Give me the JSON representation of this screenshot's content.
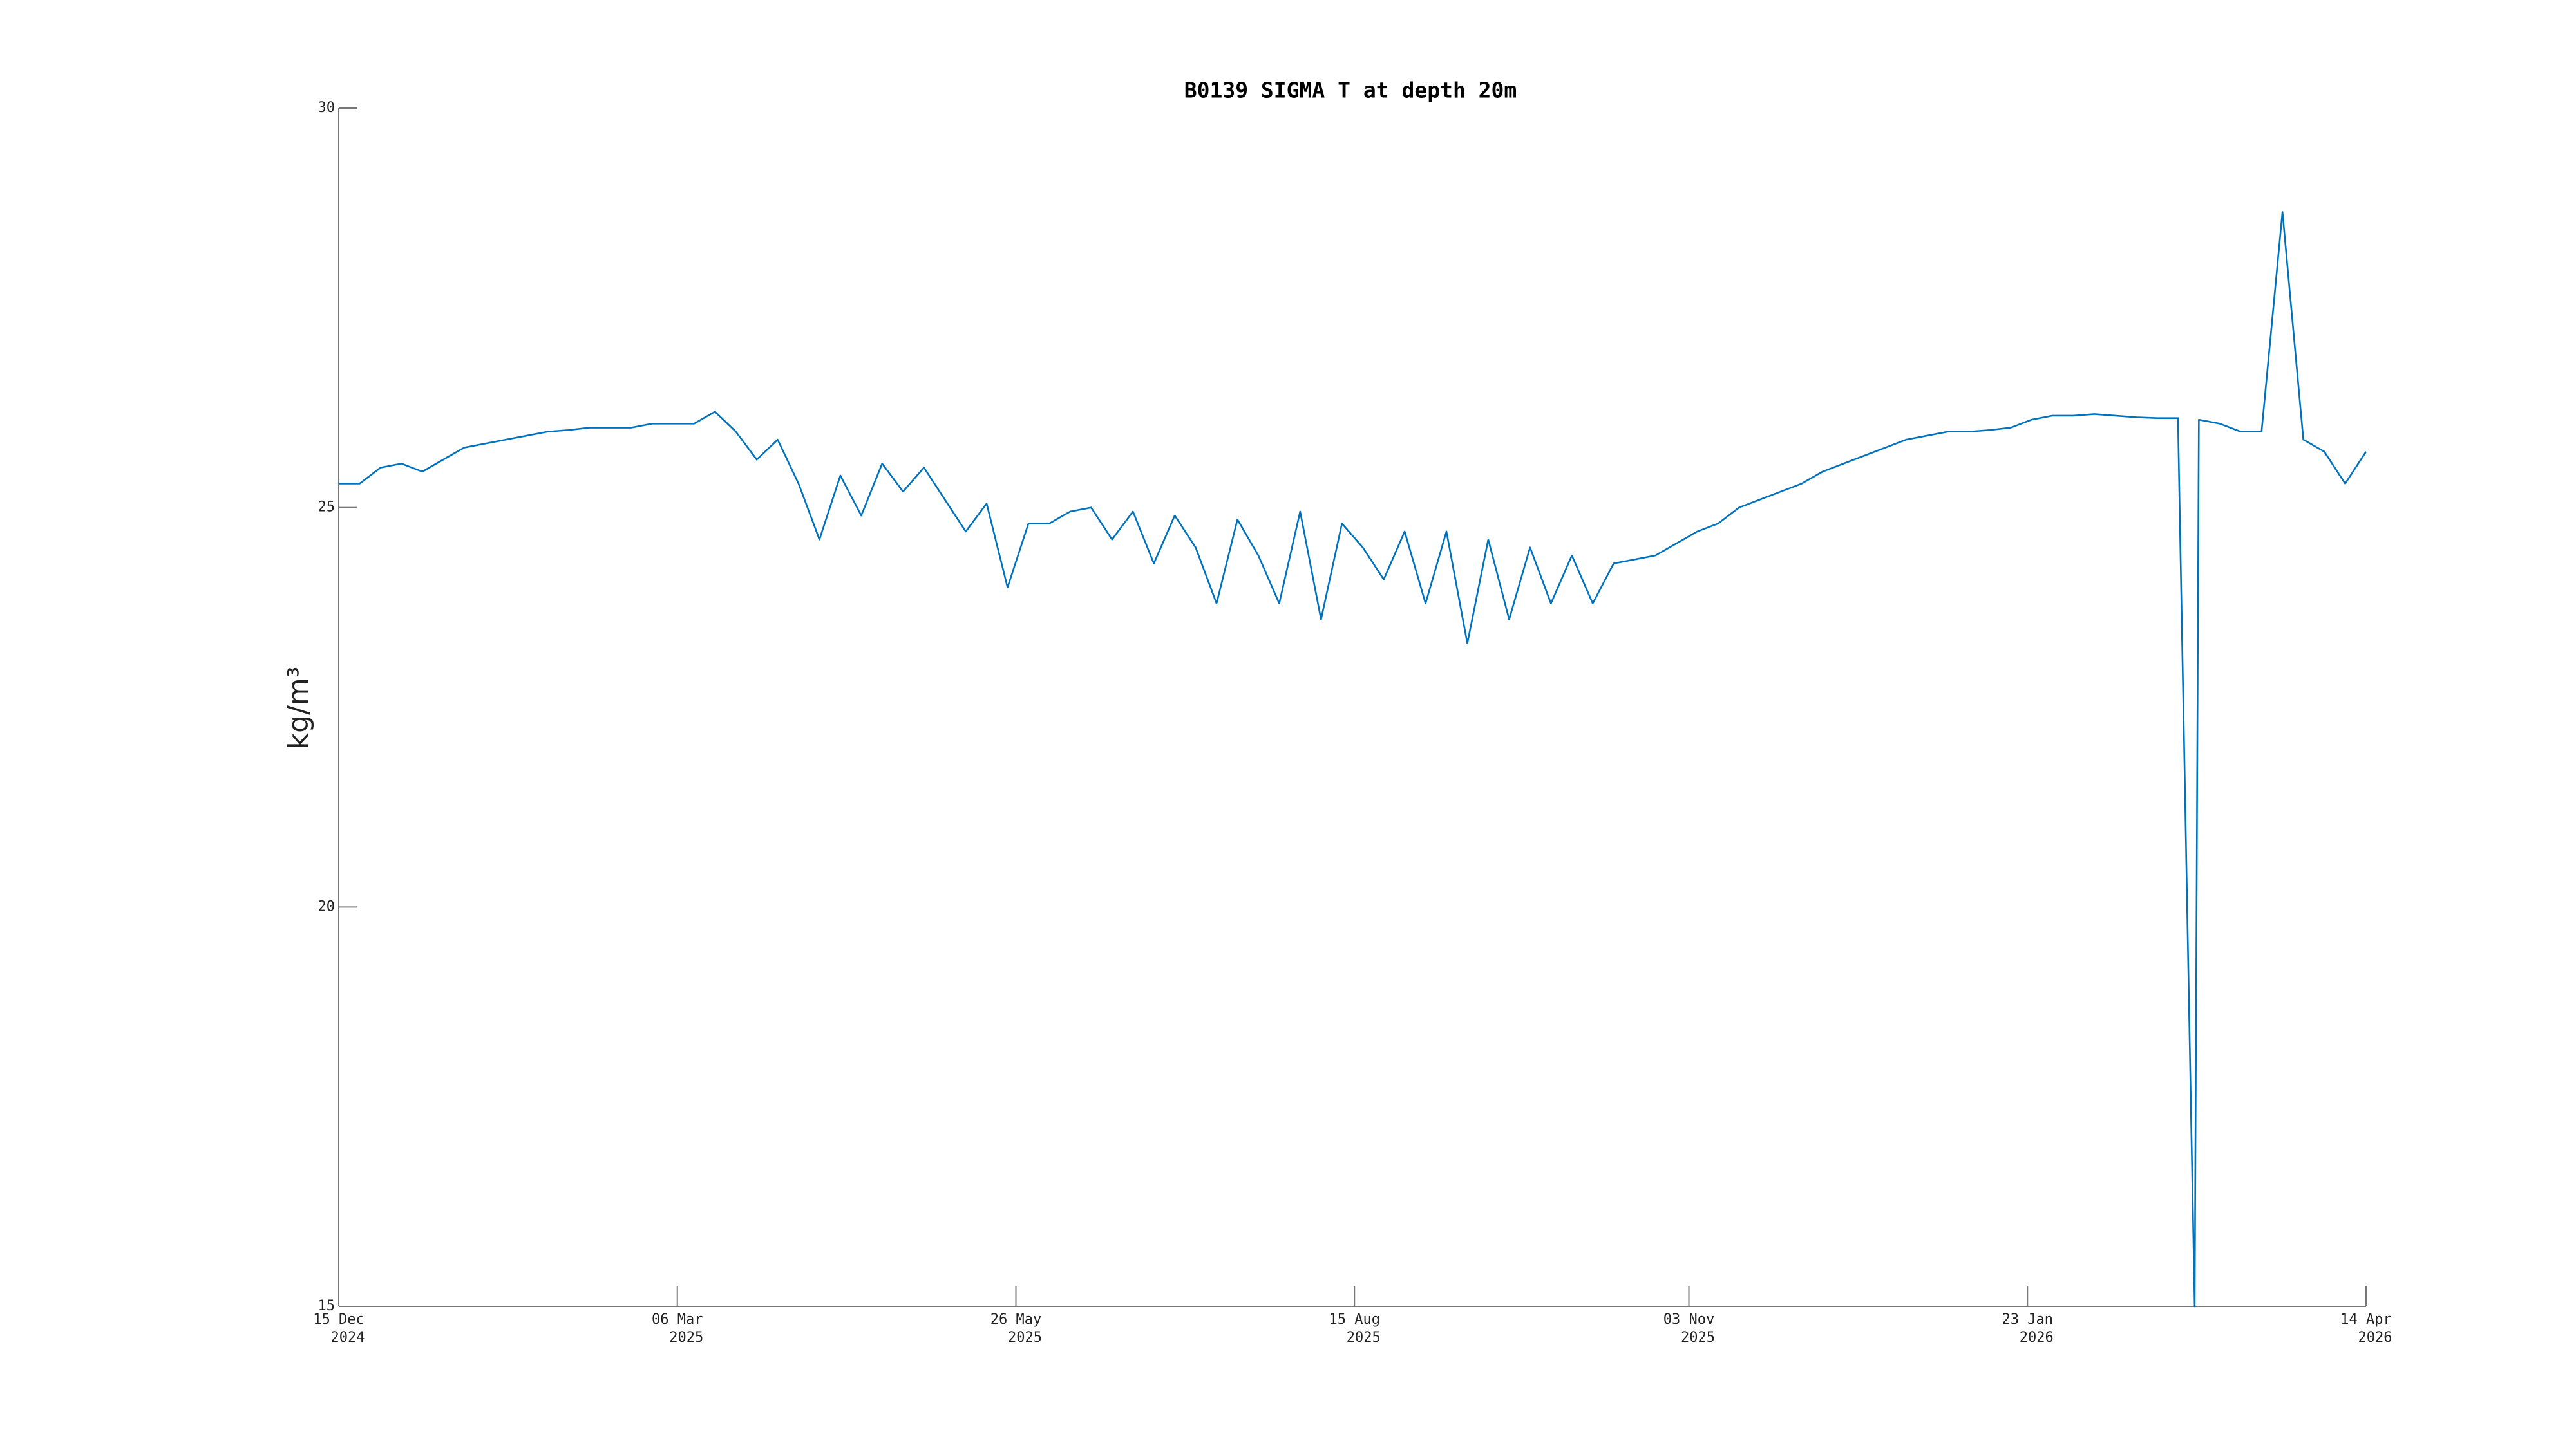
{
  "chart_data": {
    "type": "line",
    "title": "B0139 SIGMA T at depth 20m",
    "ylabel": "kg/m³",
    "color": "#0072bd",
    "x": [
      "2024-12-15",
      "2024-12-20",
      "2024-12-25",
      "2024-12-30",
      "2025-01-04",
      "2025-01-09",
      "2025-01-14",
      "2025-01-19",
      "2025-01-24",
      "2025-01-29",
      "2025-02-03",
      "2025-02-08",
      "2025-02-13",
      "2025-02-18",
      "2025-02-23",
      "2025-02-28",
      "2025-03-05",
      "2025-03-10",
      "2025-03-15",
      "2025-03-20",
      "2025-03-25",
      "2025-03-30",
      "2025-04-04",
      "2025-04-09",
      "2025-04-14",
      "2025-04-19",
      "2025-04-24",
      "2025-04-29",
      "2025-05-04",
      "2025-05-09",
      "2025-05-14",
      "2025-05-19",
      "2025-05-24",
      "2025-05-29",
      "2025-06-03",
      "2025-06-08",
      "2025-06-13",
      "2025-06-18",
      "2025-06-23",
      "2025-06-28",
      "2025-07-03",
      "2025-07-08",
      "2025-07-13",
      "2025-07-18",
      "2025-07-23",
      "2025-07-28",
      "2025-08-02",
      "2025-08-07",
      "2025-08-12",
      "2025-08-17",
      "2025-08-22",
      "2025-08-27",
      "2025-09-01",
      "2025-09-06",
      "2025-09-11",
      "2025-09-16",
      "2025-09-21",
      "2025-09-26",
      "2025-10-01",
      "2025-10-06",
      "2025-10-11",
      "2025-10-16",
      "2025-10-21",
      "2025-10-26",
      "2025-10-31",
      "2025-11-05",
      "2025-11-10",
      "2025-11-15",
      "2025-11-20",
      "2025-11-25",
      "2025-11-30",
      "2025-12-05",
      "2025-12-10",
      "2025-12-15",
      "2025-12-20",
      "2025-12-25",
      "2025-12-30",
      "2026-01-04",
      "2026-01-09",
      "2026-01-14",
      "2026-01-19",
      "2026-01-24",
      "2026-01-29",
      "2026-02-03",
      "2026-02-08",
      "2026-02-13",
      "2026-02-18",
      "2026-02-23",
      "2026-02-28",
      "2026-03-04",
      "2026-03-05",
      "2026-03-10",
      "2026-03-15",
      "2026-03-20",
      "2026-03-25",
      "2026-03-30",
      "2026-04-04",
      "2026-04-09",
      "2026-04-14"
    ],
    "values": [
      25.3,
      25.3,
      25.5,
      25.55,
      25.45,
      25.6,
      25.75,
      25.8,
      25.85,
      25.9,
      25.95,
      25.97,
      26.0,
      26.0,
      26.0,
      26.05,
      26.05,
      26.05,
      26.2,
      25.95,
      25.6,
      25.85,
      25.3,
      24.6,
      25.4,
      24.9,
      25.55,
      25.2,
      25.5,
      25.1,
      24.7,
      25.05,
      24.0,
      24.8,
      24.8,
      24.95,
      25.0,
      24.6,
      24.95,
      24.3,
      24.9,
      24.5,
      23.8,
      24.85,
      24.4,
      23.8,
      24.95,
      23.6,
      24.8,
      24.5,
      24.1,
      24.7,
      23.8,
      24.7,
      23.3,
      24.6,
      23.6,
      24.5,
      23.8,
      24.4,
      23.8,
      24.3,
      24.35,
      24.4,
      24.55,
      24.7,
      24.8,
      25.0,
      25.1,
      25.2,
      25.3,
      25.45,
      25.55,
      25.65,
      25.75,
      25.85,
      25.9,
      25.95,
      25.95,
      25.97,
      26.0,
      26.1,
      26.15,
      26.15,
      26.17,
      26.15,
      26.13,
      26.12,
      26.12,
      15,
      26.1,
      26.05,
      25.95,
      25.95,
      28.7,
      25.85,
      25.7,
      25.3,
      25.7
    ],
    "xlim": [
      "2024-12-15",
      "2026-04-14"
    ],
    "xticks": [
      {
        "value": "2024-12-15",
        "label": [
          "15 Dec",
          "2024"
        ]
      },
      {
        "value": "2025-03-06",
        "label": [
          "06 Mar",
          "2025"
        ]
      },
      {
        "value": "2025-05-26",
        "label": [
          "26 May",
          "2025"
        ]
      },
      {
        "value": "2025-08-15",
        "label": [
          "15 Aug",
          "2025"
        ]
      },
      {
        "value": "2025-11-03",
        "label": [
          "03 Nov",
          "2025"
        ]
      },
      {
        "value": "2026-01-23",
        "label": [
          "23 Jan",
          "2026"
        ]
      },
      {
        "value": "2026-04-14",
        "label": [
          "14 Apr",
          "2026"
        ]
      }
    ],
    "ylim": [
      15,
      30
    ],
    "yticks": [
      15,
      20,
      25,
      30
    ]
  }
}
